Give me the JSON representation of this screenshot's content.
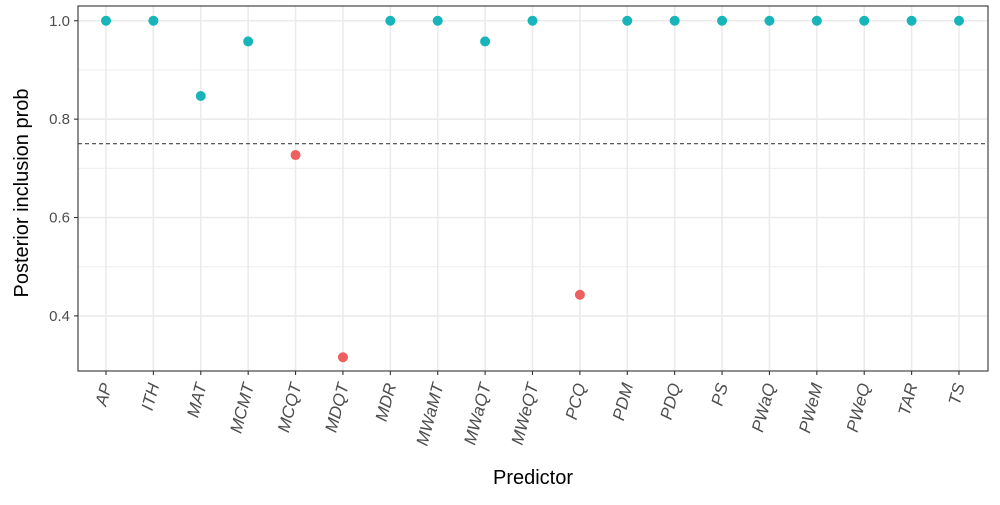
{
  "chart_data": {
    "type": "scatter",
    "xlabel": "Predictor",
    "ylabel": "Posterior inclusion prob",
    "categories": [
      "AP",
      "ITH",
      "MAT",
      "MCMT",
      "MCQT",
      "MDQT",
      "MDR",
      "MWaMT",
      "MWaQT",
      "MWeQT",
      "PCQ",
      "PDM",
      "PDQ",
      "PS",
      "PWaQ",
      "PWeM",
      "PWeQ",
      "TAR",
      "TS"
    ],
    "values": [
      1.0,
      1.0,
      0.847,
      0.958,
      0.727,
      0.316,
      1.0,
      1.0,
      0.958,
      1.0,
      0.443,
      1.0,
      1.0,
      1.0,
      1.0,
      1.0,
      1.0,
      1.0,
      1.0
    ],
    "threshold": 0.75,
    "ylim": [
      0.288,
      1.03
    ],
    "yticks": [
      0.4,
      0.6,
      0.8,
      1.0
    ],
    "ytick_labels": [
      "0.4",
      "0.6",
      "0.8",
      "1.0"
    ],
    "grid": true,
    "legend": "none",
    "colors": {
      "above_threshold": "#17b5b9",
      "below_threshold": "#ef5f5f",
      "threshold_line": "#444444",
      "grid": "#ebebeb",
      "panel_border": "#333333"
    }
  }
}
